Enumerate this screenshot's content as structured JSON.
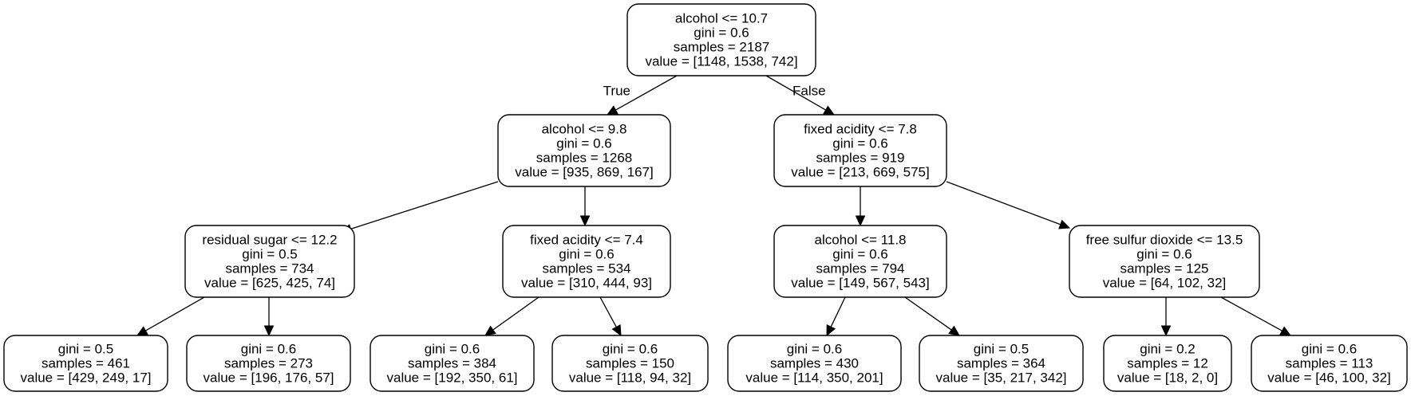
{
  "tree": {
    "nodes": [
      {
        "id": "n0",
        "lines": [
          "alcohol <= 10.7",
          "gini = 0.6",
          "samples = 2187",
          "value = [1148, 1538, 742]"
        ]
      },
      {
        "id": "n1",
        "lines": [
          "alcohol <= 9.8",
          "gini = 0.6",
          "samples = 1268",
          "value = [935, 869, 167]"
        ]
      },
      {
        "id": "n2",
        "lines": [
          "fixed acidity <= 7.8",
          "gini = 0.6",
          "samples = 919",
          "value = [213, 669, 575]"
        ]
      },
      {
        "id": "n3",
        "lines": [
          "residual sugar <= 12.2",
          "gini = 0.5",
          "samples = 734",
          "value = [625, 425, 74]"
        ]
      },
      {
        "id": "n4",
        "lines": [
          "fixed acidity <= 7.4",
          "gini = 0.6",
          "samples = 534",
          "value = [310, 444, 93]"
        ]
      },
      {
        "id": "n5",
        "lines": [
          "alcohol <= 11.8",
          "gini = 0.6",
          "samples = 794",
          "value = [149, 567, 543]"
        ]
      },
      {
        "id": "n6",
        "lines": [
          "free sulfur dioxide <= 13.5",
          "gini = 0.6",
          "samples = 125",
          "value = [64, 102, 32]"
        ]
      },
      {
        "id": "n7",
        "lines": [
          "gini = 0.5",
          "samples = 461",
          "value = [429, 249, 17]"
        ]
      },
      {
        "id": "n8",
        "lines": [
          "gini = 0.6",
          "samples = 273",
          "value = [196, 176, 57]"
        ]
      },
      {
        "id": "n9",
        "lines": [
          "gini = 0.6",
          "samples = 384",
          "value = [192, 350, 61]"
        ]
      },
      {
        "id": "n10",
        "lines": [
          "gini = 0.6",
          "samples = 150",
          "value = [118, 94, 32]"
        ]
      },
      {
        "id": "n11",
        "lines": [
          "gini = 0.6",
          "samples = 430",
          "value = [114, 350, 201]"
        ]
      },
      {
        "id": "n12",
        "lines": [
          "gini = 0.5",
          "samples = 364",
          "value = [35, 217, 342]"
        ]
      },
      {
        "id": "n13",
        "lines": [
          "gini = 0.2",
          "samples = 12",
          "value = [18, 2, 0]"
        ]
      },
      {
        "id": "n14",
        "lines": [
          "gini = 0.6",
          "samples = 113",
          "value = [46, 100, 32]"
        ]
      }
    ],
    "edges": [
      {
        "from": "n0",
        "to": "n1",
        "label": "True"
      },
      {
        "from": "n0",
        "to": "n2",
        "label": "False"
      },
      {
        "from": "n1",
        "to": "n3",
        "label": ""
      },
      {
        "from": "n1",
        "to": "n4",
        "label": ""
      },
      {
        "from": "n2",
        "to": "n5",
        "label": ""
      },
      {
        "from": "n2",
        "to": "n6",
        "label": ""
      },
      {
        "from": "n3",
        "to": "n7",
        "label": ""
      },
      {
        "from": "n3",
        "to": "n8",
        "label": ""
      },
      {
        "from": "n4",
        "to": "n9",
        "label": ""
      },
      {
        "from": "n4",
        "to": "n10",
        "label": ""
      },
      {
        "from": "n5",
        "to": "n11",
        "label": ""
      },
      {
        "from": "n5",
        "to": "n12",
        "label": ""
      },
      {
        "from": "n6",
        "to": "n13",
        "label": ""
      },
      {
        "from": "n6",
        "to": "n14",
        "label": ""
      }
    ]
  }
}
